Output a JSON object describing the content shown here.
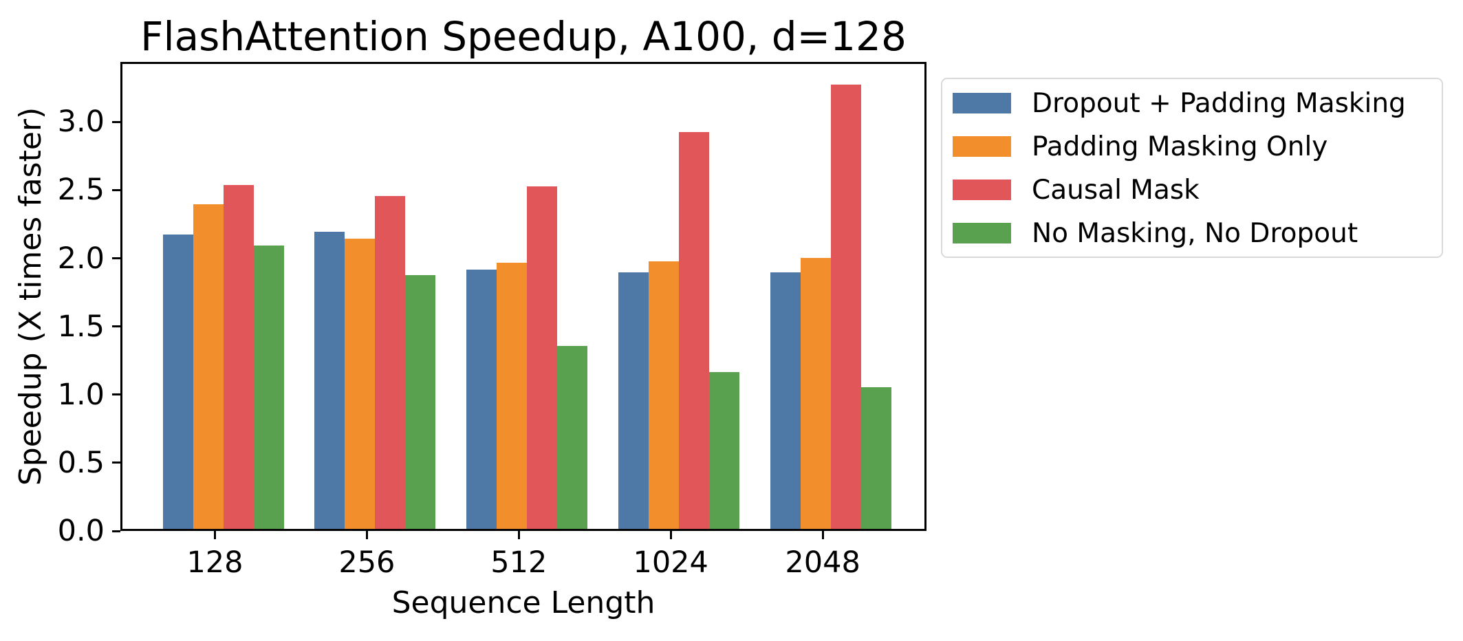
{
  "chart_data": {
    "type": "bar",
    "title": "FlashAttention Speedup, A100, d=128",
    "xlabel": "Sequence Length",
    "ylabel": "Speedup (X times faster)",
    "categories": [
      "128",
      "256",
      "512",
      "1024",
      "2048"
    ],
    "series": [
      {
        "name": "Dropout + Padding Masking",
        "color": "#4e79a7",
        "values": [
          2.16,
          2.18,
          1.9,
          1.88,
          1.88
        ]
      },
      {
        "name": "Padding Masking Only",
        "color": "#f28e2b",
        "values": [
          2.38,
          2.13,
          1.95,
          1.96,
          1.99
        ]
      },
      {
        "name": "Causal Mask",
        "color": "#e15759",
        "values": [
          2.52,
          2.44,
          2.51,
          2.91,
          3.26
        ]
      },
      {
        "name": "No Masking, No Dropout",
        "color": "#59a14f",
        "values": [
          2.08,
          1.86,
          1.34,
          1.15,
          1.04
        ]
      }
    ],
    "ylim": [
      0,
      3.44
    ],
    "yticks": [
      0.0,
      0.5,
      1.0,
      1.5,
      2.0,
      2.5,
      3.0
    ],
    "grid": false,
    "legend_position": "outside-right",
    "axis_color": "#000000",
    "background_color": "#ffffff"
  }
}
